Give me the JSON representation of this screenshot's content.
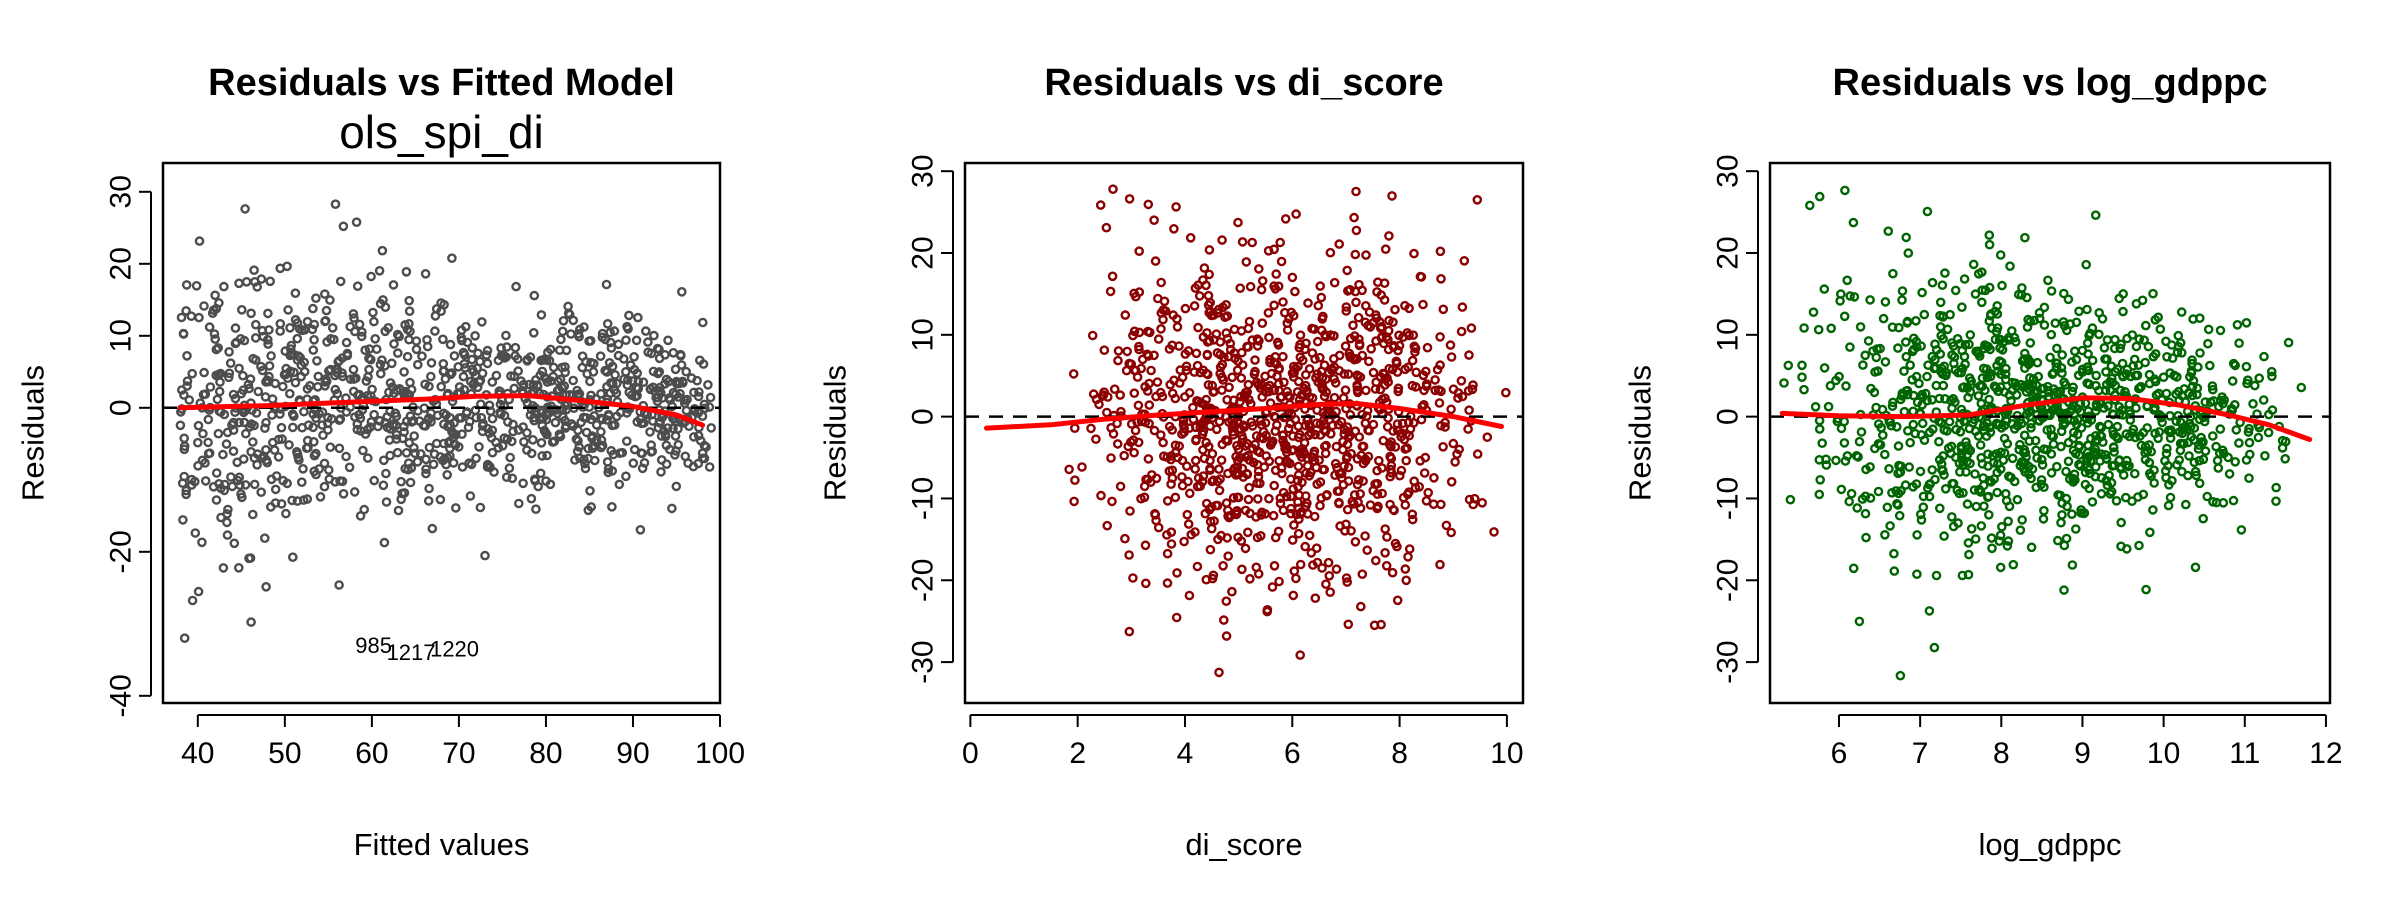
{
  "chart_data": [
    {
      "type": "scatter",
      "title": "Residuals vs Fitted Model",
      "subtitle": "ols_spi_di",
      "xlabel": "Fitted values",
      "ylabel": "Residuals",
      "xlim": [
        36,
        100
      ],
      "ylim": [
        -41,
        34
      ],
      "xticks": [
        40,
        50,
        60,
        70,
        80,
        90,
        100
      ],
      "yticks": [
        30,
        20,
        10,
        0,
        -20,
        -40
      ],
      "point_color": "#4d4d4d",
      "point_x_range": [
        38,
        99
      ],
      "smooth_color": "#ff0000",
      "smooth": {
        "x": [
          38,
          48,
          58,
          66,
          72,
          78,
          84,
          90,
          95,
          98
        ],
        "y": [
          0,
          0.3,
          0.8,
          1.2,
          1.6,
          1.7,
          1.0,
          0.2,
          -1.0,
          -2.4
        ]
      },
      "annotations": [
        {
          "text": "985",
          "x": 60.2,
          "y": -33
        },
        {
          "text": "1217",
          "x": 64.5,
          "y": -34
        },
        {
          "text": "1220",
          "x": 69.5,
          "y": -33.5
        }
      ]
    },
    {
      "type": "scatter",
      "title": "Residuals vs di_score",
      "subtitle": "",
      "xlabel": "di_score",
      "ylabel": "Residuals",
      "xlim": [
        -0.1,
        10.3
      ],
      "ylim": [
        -35,
        31
      ],
      "xticks": [
        0,
        2,
        4,
        6,
        8,
        10
      ],
      "yticks": [
        30,
        20,
        10,
        0,
        -10,
        -20,
        -30
      ],
      "point_color": "#8b0000",
      "point_x_range": [
        0.2,
        10
      ],
      "smooth_color": "#ff0000",
      "smooth": {
        "x": [
          0.3,
          1.5,
          2.5,
          3.5,
          4.5,
          5.5,
          6.5,
          7.2,
          8,
          9,
          9.9
        ],
        "y": [
          -1.4,
          -1.0,
          -0.3,
          0.2,
          0.6,
          1.0,
          1.5,
          1.6,
          1.0,
          0,
          -1.2
        ]
      },
      "annotations": []
    },
    {
      "type": "scatter",
      "title": "Residuals vs log_gdppc",
      "subtitle": "",
      "xlabel": "log_gdppc",
      "ylabel": "Residuals",
      "xlim": [
        5.15,
        12.05
      ],
      "ylim": [
        -35,
        31
      ],
      "xticks": [
        6,
        7,
        8,
        9,
        10,
        11,
        12
      ],
      "yticks": [
        30,
        20,
        10,
        0,
        -10,
        -20,
        -30
      ],
      "point_color": "#006400",
      "point_x_range": [
        5.3,
        11.8
      ],
      "smooth_color": "#ff0000",
      "smooth": {
        "x": [
          5.3,
          6,
          6.8,
          7.6,
          8.3,
          9,
          9.6,
          10.2,
          10.8,
          11.3,
          11.8
        ],
        "y": [
          0.4,
          0.1,
          0,
          0.2,
          1.4,
          2.3,
          2.2,
          1.4,
          0.2,
          -1.0,
          -2.8
        ]
      },
      "annotations": []
    }
  ]
}
